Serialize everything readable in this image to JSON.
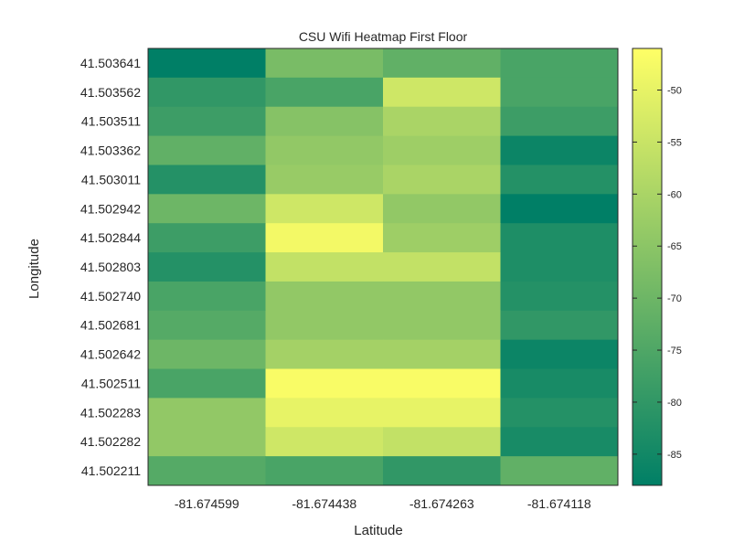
{
  "chart_data": {
    "type": "heatmap",
    "title": "CSU Wifi Heatmap First Floor",
    "xlabel": "Latitude",
    "ylabel": "Longitude",
    "x_categories": [
      "-81.674599",
      "-81.674438",
      "-81.674263",
      "-81.674118"
    ],
    "y_categories": [
      "41.503641",
      "41.503562",
      "41.503511",
      "41.503362",
      "41.503011",
      "41.502942",
      "41.502844",
      "41.502803",
      "41.502740",
      "41.502681",
      "41.502642",
      "41.502511",
      "41.502283",
      "41.502282",
      "41.502211"
    ],
    "values": [
      [
        -88,
        -68,
        -72,
        -76
      ],
      [
        -80,
        -76,
        -54,
        -76
      ],
      [
        -78,
        -66,
        -60,
        -78
      ],
      [
        -72,
        -64,
        -62,
        -86
      ],
      [
        -82,
        -63,
        -60,
        -82
      ],
      [
        -70,
        -54,
        -64,
        -88
      ],
      [
        -78,
        -48,
        -62,
        -83
      ],
      [
        -82,
        -56,
        -56,
        -83
      ],
      [
        -76,
        -64,
        -64,
        -82
      ],
      [
        -74,
        -64,
        -64,
        -80
      ],
      [
        -70,
        -61,
        -61,
        -86
      ],
      [
        -76,
        -47,
        -47,
        -84
      ],
      [
        -64,
        -50,
        -50,
        -82
      ],
      [
        -64,
        -54,
        -56,
        -84
      ],
      [
        -74,
        -76,
        -80,
        -72
      ]
    ],
    "colorbar": {
      "min": -88,
      "max": -46,
      "ticks": [
        "-50",
        "-55",
        "-60",
        "-65",
        "-70",
        "-75",
        "-80",
        "-85"
      ],
      "tick_values": [
        -50,
        -55,
        -60,
        -65,
        -70,
        -75,
        -80,
        -85
      ]
    },
    "colormap": "summer-like",
    "colormap_low": "#007f66",
    "colormap_high": "#ffff66",
    "grid": false
  }
}
